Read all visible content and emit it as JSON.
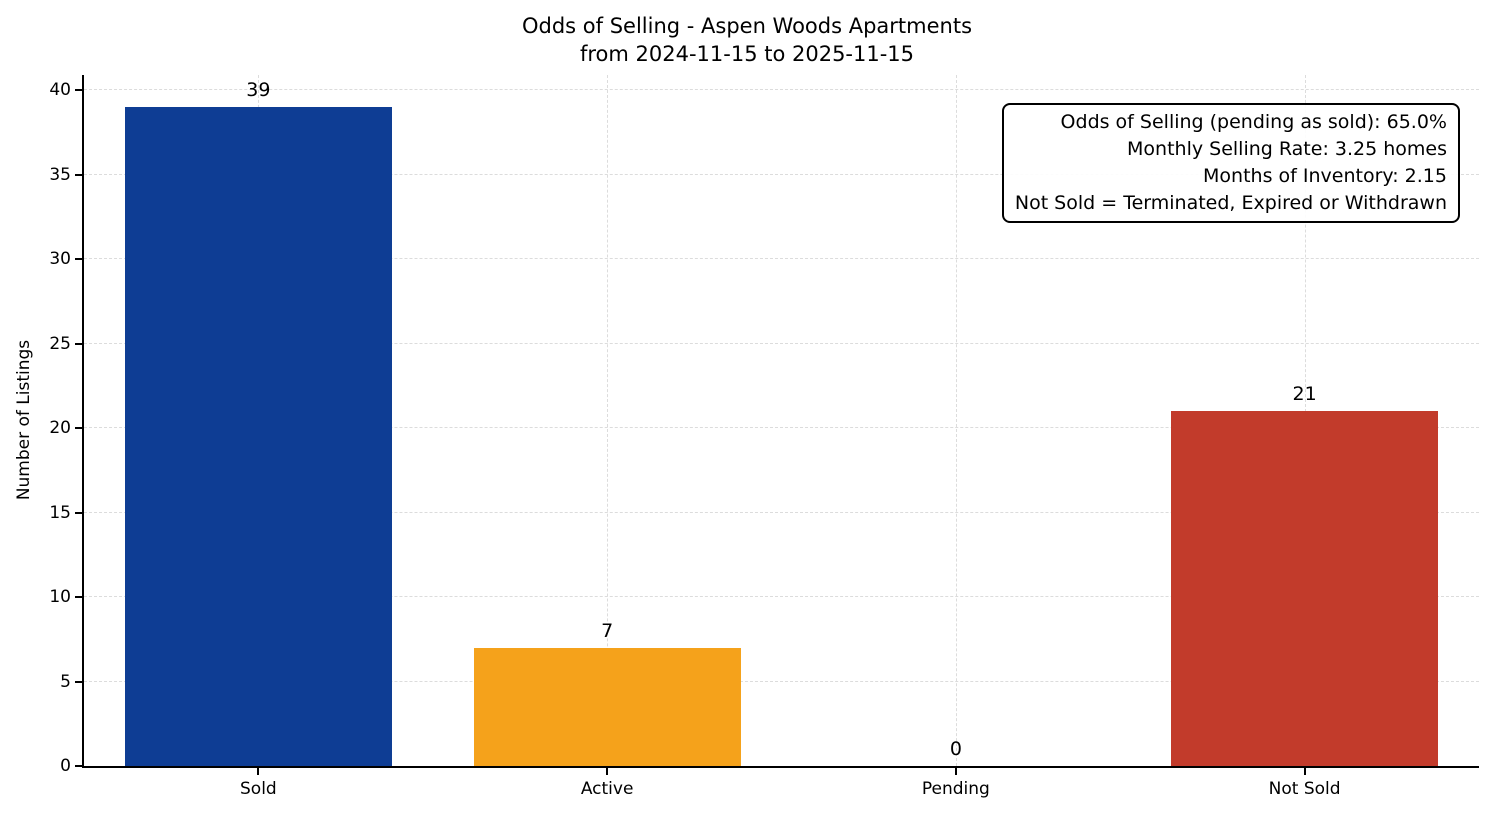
{
  "chart_data": {
    "type": "bar",
    "title": "Odds of Selling - Aspen Woods Apartments",
    "subtitle": "from 2024-11-15 to 2025-11-15",
    "xlabel": "",
    "ylabel": "Number of Listings",
    "categories": [
      "Sold",
      "Active",
      "Pending",
      "Not Sold"
    ],
    "values": [
      39,
      7,
      0,
      21
    ],
    "bar_colors": [
      "#0e3d94",
      "#f5a21b",
      "#999999",
      "#c23b2b"
    ],
    "ylim": [
      0,
      40.9
    ],
    "yticks": [
      0,
      5,
      10,
      15,
      20,
      25,
      30,
      35,
      40
    ],
    "grid": true,
    "grid_style": "dashed",
    "legend_position": "none",
    "annotation": [
      "Odds of Selling (pending as sold): 65.0%",
      "Monthly Selling Rate: 3.25 homes",
      "Months of Inventory: 2.15",
      "Not Sold = Terminated, Expired or Withdrawn"
    ]
  }
}
